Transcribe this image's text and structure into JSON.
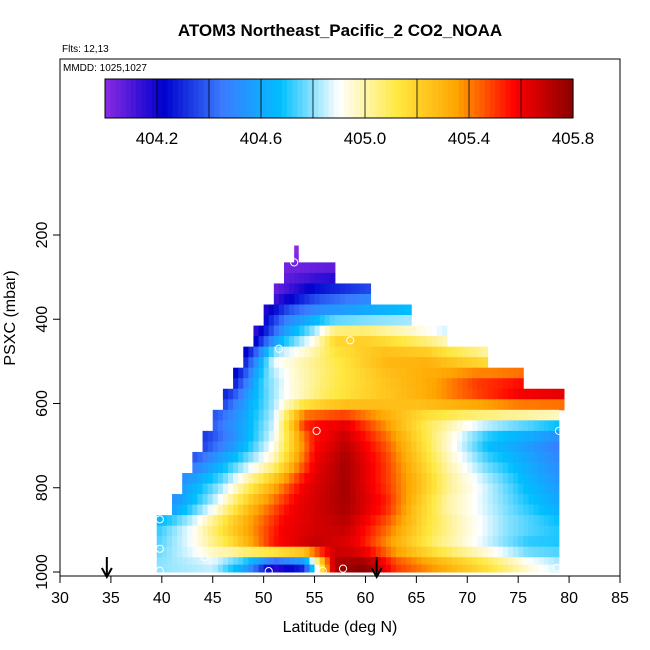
{
  "chart_data": {
    "type": "heatmap",
    "title": "ATOM3 Northeast_Pacific_2 CO2_NOAA",
    "flights_label": "Flts: 12,13",
    "mmdd_label": "MMDD: 1025,1027",
    "xlabel": "Latitude (deg N)",
    "ylabel": "PSXC (mbar)",
    "xlim": [
      30,
      85
    ],
    "ylim": [
      1000,
      100
    ],
    "x_ticks": [
      30,
      35,
      40,
      45,
      50,
      55,
      60,
      65,
      70,
      75,
      80,
      85
    ],
    "y_ticks": [
      200,
      400,
      600,
      800,
      1000
    ],
    "x_tick_labels": [
      "30",
      "35",
      "40",
      "45",
      "50",
      "55",
      "60",
      "65",
      "70",
      "75",
      "80",
      "85"
    ],
    "y_tick_labels": [
      "200",
      "400",
      "600",
      "800",
      "1000"
    ],
    "colorbar": {
      "range": [
        404.0,
        405.8
      ],
      "tick_values": [
        404.2,
        404.6,
        405.0,
        405.4,
        405.8
      ],
      "tick_labels": [
        "404.2",
        "404.6",
        "405.0",
        "405.4",
        "405.8"
      ],
      "colors": [
        "#8a2be2",
        "#0000cd",
        "#3a7bff",
        "#00bfff",
        "#ffffff",
        "#ffe840",
        "#ffa500",
        "#ff0000",
        "#8b0000"
      ]
    },
    "curtain_bands": [
      {
        "p_top": 225,
        "p_bot": 265,
        "lat_start": 53.0,
        "lat_end": 53.4
      },
      {
        "p_top": 265,
        "p_bot": 315,
        "lat_start": 52.0,
        "lat_end": 57.0
      },
      {
        "p_top": 315,
        "p_bot": 365,
        "lat_start": 51.0,
        "lat_end": 60.5
      },
      {
        "p_top": 365,
        "p_bot": 415,
        "lat_start": 50.0,
        "lat_end": 64.5
      },
      {
        "p_top": 415,
        "p_bot": 465,
        "lat_start": 49.0,
        "lat_end": 68.0
      },
      {
        "p_top": 465,
        "p_bot": 515,
        "lat_start": 48.0,
        "lat_end": 72.0
      },
      {
        "p_top": 515,
        "p_bot": 565,
        "lat_start": 47.0,
        "lat_end": 75.5
      },
      {
        "p_top": 565,
        "p_bot": 615,
        "lat_start": 46.0,
        "lat_end": 79.5
      },
      {
        "p_top": 615,
        "p_bot": 665,
        "lat_start": 45.0,
        "lat_end": 79.0
      },
      {
        "p_top": 665,
        "p_bot": 715,
        "lat_start": 44.0,
        "lat_end": 79.0
      },
      {
        "p_top": 715,
        "p_bot": 765,
        "lat_start": 43.0,
        "lat_end": 79.0
      },
      {
        "p_top": 765,
        "p_bot": 815,
        "lat_start": 42.0,
        "lat_end": 79.0
      },
      {
        "p_top": 815,
        "p_bot": 865,
        "lat_start": 41.0,
        "lat_end": 79.0
      },
      {
        "p_top": 865,
        "p_bot": 915,
        "lat_start": 39.5,
        "lat_end": 79.0
      },
      {
        "p_top": 915,
        "p_bot": 965,
        "lat_start": 39.5,
        "lat_end": 79.0
      },
      {
        "p_top": 965,
        "p_bot": 1000,
        "lat_start": 39.5,
        "lat_end": 79.0
      }
    ],
    "field_anchors": [
      {
        "p": 240,
        "lat": [
          53
        ],
        "co2": [
          404.0
        ]
      },
      {
        "p": 290,
        "lat": [
          52,
          57
        ],
        "co2": [
          404.05,
          404.1
        ]
      },
      {
        "p": 340,
        "lat": [
          51,
          55,
          60.5
        ],
        "co2": [
          404.05,
          404.3,
          404.45
        ]
      },
      {
        "p": 390,
        "lat": [
          50,
          52.5,
          56,
          60,
          64.5
        ],
        "co2": [
          404.2,
          404.45,
          404.6,
          404.65,
          404.75
        ]
      },
      {
        "p": 440,
        "lat": [
          49,
          52,
          55,
          57,
          60,
          64,
          68
        ],
        "co2": [
          404.1,
          404.6,
          404.9,
          405.2,
          405.2,
          405.05,
          404.9
        ]
      },
      {
        "p": 490,
        "lat": [
          48,
          51,
          54,
          58,
          62,
          66,
          72
        ],
        "co2": [
          404.2,
          404.9,
          405.0,
          405.15,
          405.3,
          405.3,
          405.05
        ]
      },
      {
        "p": 540,
        "lat": [
          47,
          50,
          53,
          57,
          62,
          67,
          71,
          75.5
        ],
        "co2": [
          404.2,
          404.75,
          404.95,
          405.1,
          405.25,
          405.35,
          405.5,
          405.55
        ]
      },
      {
        "p": 590,
        "lat": [
          46,
          49,
          52,
          56,
          60,
          65,
          70,
          75,
          79.5
        ],
        "co2": [
          404.3,
          404.65,
          404.9,
          405.1,
          405.2,
          405.3,
          405.45,
          405.6,
          405.65
        ]
      },
      {
        "p": 640,
        "lat": [
          45,
          48,
          51,
          54,
          58,
          62,
          66,
          70,
          74,
          79
        ],
        "co2": [
          404.4,
          404.6,
          404.85,
          405.55,
          405.6,
          405.35,
          405.1,
          404.95,
          404.85,
          404.75
        ]
      },
      {
        "p": 690,
        "lat": [
          44,
          47,
          51,
          55,
          58,
          62,
          65,
          68,
          72,
          76,
          79
        ],
        "co2": [
          404.3,
          404.5,
          404.9,
          405.55,
          405.7,
          405.45,
          405.2,
          404.95,
          404.65,
          404.55,
          404.45
        ]
      },
      {
        "p": 740,
        "lat": [
          43,
          47,
          51,
          55,
          58,
          62,
          65,
          68,
          72,
          76,
          79
        ],
        "co2": [
          404.4,
          404.7,
          405.0,
          405.6,
          405.75,
          405.5,
          405.25,
          405.0,
          404.75,
          404.6,
          404.5
        ]
      },
      {
        "p": 790,
        "lat": [
          42,
          46,
          50,
          54,
          58,
          62,
          65,
          68,
          72,
          76,
          79
        ],
        "co2": [
          404.55,
          404.8,
          405.2,
          405.6,
          405.75,
          405.5,
          405.3,
          405.05,
          404.85,
          404.65,
          404.55
        ]
      },
      {
        "p": 840,
        "lat": [
          41,
          45,
          49,
          53,
          58,
          62,
          65,
          68,
          72,
          76,
          79
        ],
        "co2": [
          404.5,
          404.85,
          405.3,
          405.6,
          405.75,
          405.55,
          405.25,
          405.0,
          404.85,
          404.7,
          404.6
        ]
      },
      {
        "p": 890,
        "lat": [
          39.5,
          43,
          47,
          52,
          58,
          62,
          66,
          70,
          74,
          79
        ],
        "co2": [
          404.7,
          404.9,
          405.25,
          405.6,
          405.7,
          405.45,
          405.15,
          404.95,
          404.8,
          404.7
        ]
      },
      {
        "p": 940,
        "lat": [
          39.5,
          43,
          47,
          51,
          55,
          59,
          63,
          67,
          72,
          76,
          79
        ],
        "co2": [
          404.75,
          404.9,
          405.15,
          405.55,
          405.7,
          405.6,
          405.3,
          405.05,
          404.85,
          404.7,
          404.7
        ]
      },
      {
        "p": 982,
        "lat": [
          39.5,
          45,
          48,
          51,
          54,
          57,
          60,
          63,
          67,
          72,
          76,
          79
        ],
        "co2": [
          404.8,
          404.85,
          404.6,
          404.15,
          404.3,
          405.75,
          405.8,
          405.5,
          405.35,
          405.15,
          404.95,
          404.85
        ]
      }
    ],
    "sample_points": [
      {
        "lat": 53.0,
        "p": 265
      },
      {
        "lat": 58.5,
        "p": 450
      },
      {
        "lat": 51.5,
        "p": 470
      },
      {
        "lat": 55.2,
        "p": 665
      },
      {
        "lat": 70.0,
        "p": 655
      },
      {
        "lat": 79.0,
        "p": 665
      },
      {
        "lat": 80.0,
        "p": 565
      },
      {
        "lat": 39.8,
        "p": 875
      },
      {
        "lat": 39.8,
        "p": 945
      },
      {
        "lat": 44.2,
        "p": 965
      },
      {
        "lat": 39.8,
        "p": 997
      },
      {
        "lat": 50.5,
        "p": 998
      },
      {
        "lat": 55.8,
        "p": 997
      },
      {
        "lat": 57.8,
        "p": 992
      },
      {
        "lat": 78.8,
        "p": 990
      }
    ],
    "arrow_markers": [
      {
        "lat": 34.6
      },
      {
        "lat": 61.1
      }
    ]
  }
}
